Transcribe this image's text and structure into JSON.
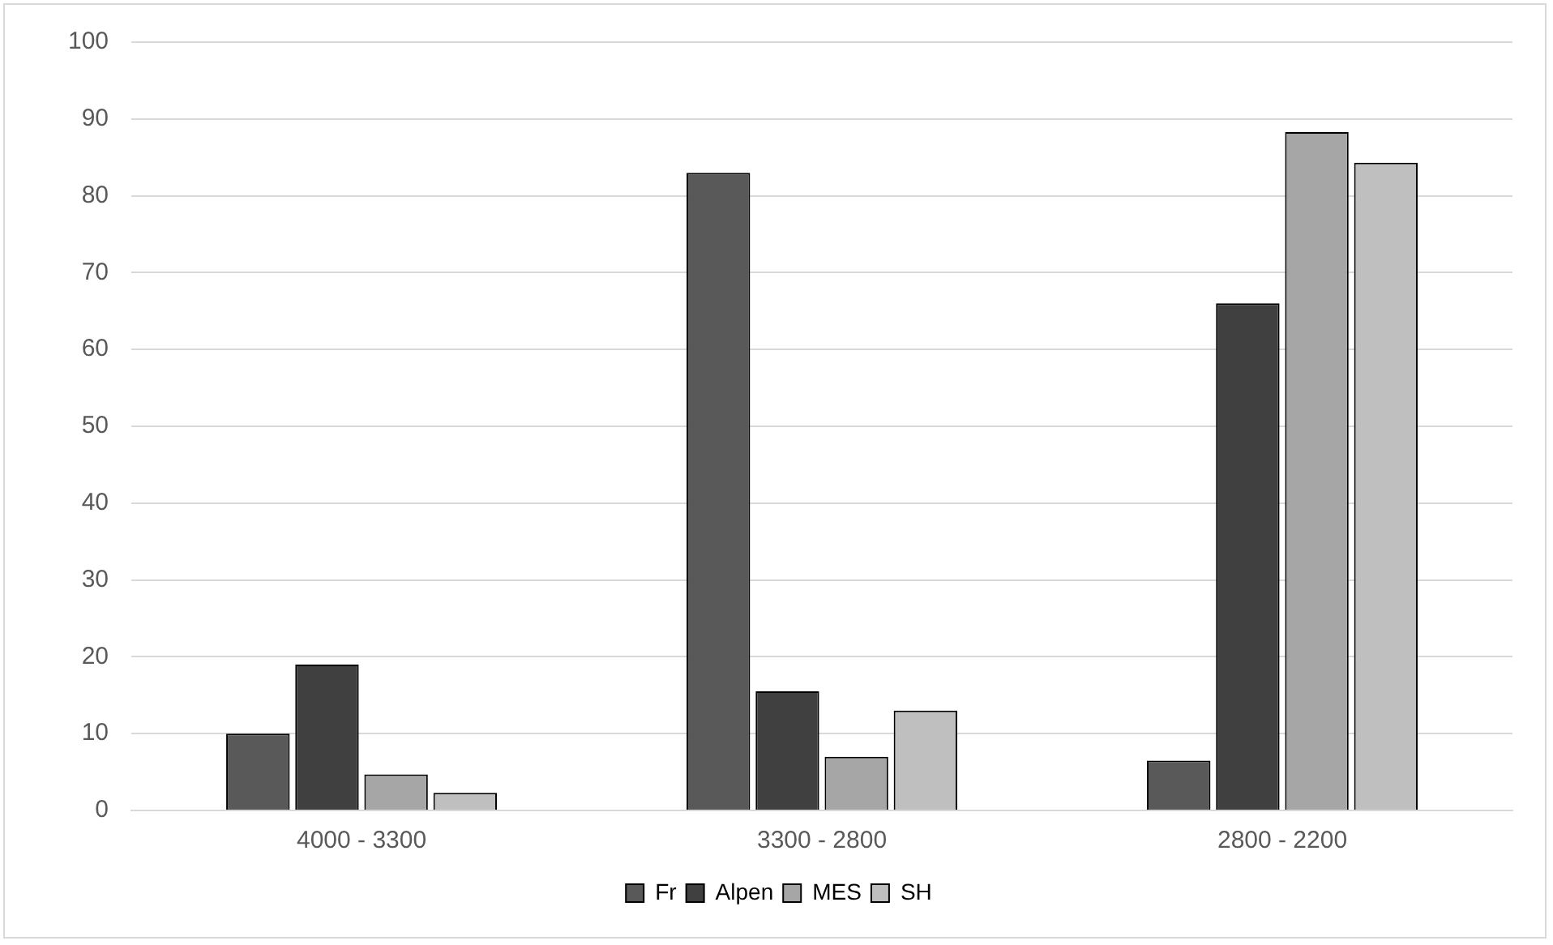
{
  "chart_data": {
    "type": "bar",
    "categories": [
      "4000 - 3300",
      "3300 - 2800",
      "2800 - 2200"
    ],
    "series": [
      {
        "name": "Fr",
        "color": "#595959",
        "values": [
          10,
          83,
          6.5
        ]
      },
      {
        "name": "Alpen",
        "color": "#404040",
        "values": [
          19,
          15.5,
          66
        ]
      },
      {
        "name": "MES",
        "color": "#a6a6a6",
        "values": [
          4.7,
          7,
          88.3
        ]
      },
      {
        "name": "SH",
        "color": "#bfbfbf",
        "values": [
          2.3,
          13,
          84.3
        ]
      }
    ],
    "ylim": [
      0,
      100
    ],
    "yticks": [
      0,
      10,
      20,
      30,
      40,
      50,
      60,
      70,
      80,
      90,
      100
    ],
    "grid": "y",
    "legend": "bottom"
  }
}
